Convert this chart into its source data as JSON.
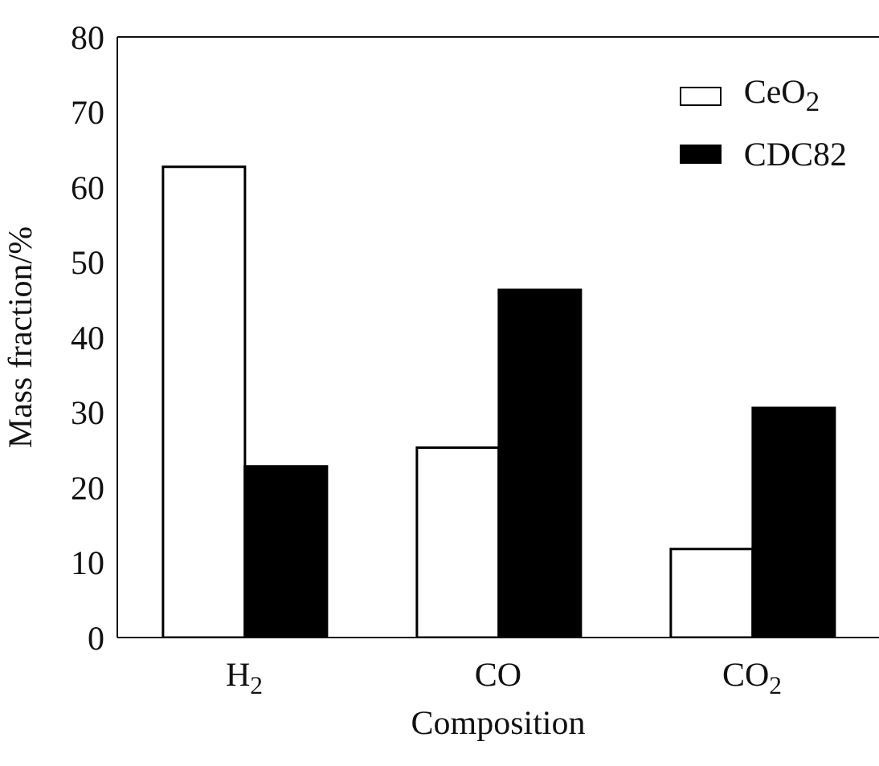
{
  "chart_data": {
    "type": "bar",
    "xlabel": "Composition",
    "ylabel": "Mass fraction/%",
    "categories": [
      "H$_{2}$",
      "CO",
      "CO$_{2}$"
    ],
    "series": [
      {
        "name": "CeO$_{2}$",
        "color": "#ffffff",
        "values": [
          62.7,
          25.3,
          11.8
        ]
      },
      {
        "name": "CDC82",
        "color": "#000000",
        "values": [
          22.8,
          46.3,
          30.6
        ]
      }
    ],
    "ylim": [
      0,
      80
    ],
    "yticks": [
      0,
      10,
      20,
      30,
      40,
      50,
      60,
      70,
      80
    ],
    "grid": false,
    "legend": "top right"
  }
}
